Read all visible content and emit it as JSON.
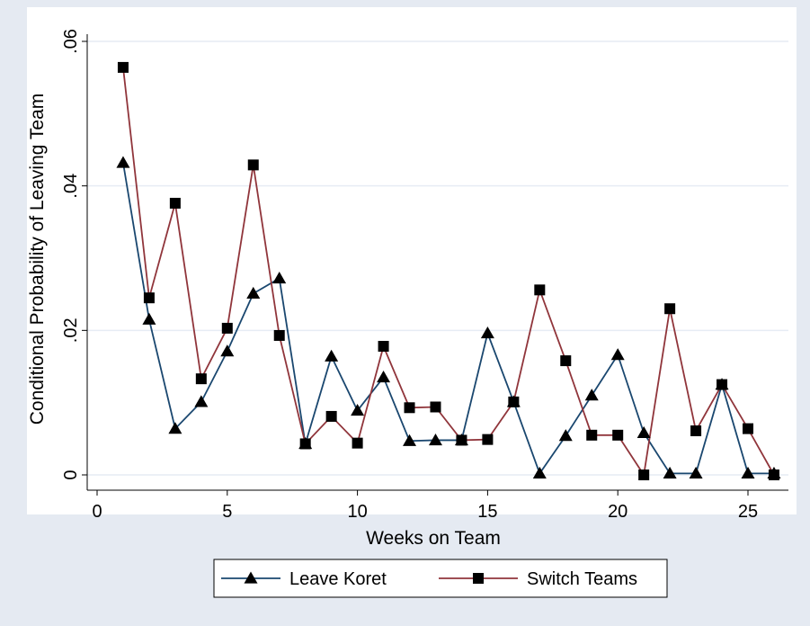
{
  "chart_data": {
    "type": "line",
    "xlabel": "Weeks on Team",
    "ylabel": "Conditional Probability of Leaving Team",
    "xlim": [
      0,
      26.5
    ],
    "ylim": [
      0,
      0.06
    ],
    "x_ticks": [
      0,
      5,
      10,
      15,
      20,
      25
    ],
    "x_tick_labels": [
      "0",
      "5",
      "10",
      "15",
      "20",
      "25"
    ],
    "y_ticks": [
      0,
      0.02,
      0.04,
      0.06
    ],
    "y_tick_labels": [
      "0",
      ".02",
      ".04",
      ".06"
    ],
    "grid": "horizontal",
    "legend_position": "bottom",
    "x": [
      1,
      2,
      3,
      4,
      5,
      6,
      7,
      8,
      9,
      10,
      11,
      12,
      13,
      14,
      15,
      16,
      17,
      18,
      19,
      20,
      21,
      22,
      23,
      24,
      25,
      26
    ],
    "series": [
      {
        "name": "Leave Koret",
        "color": "#1a476f",
        "marker": "triangle",
        "values": [
          0.0432,
          0.0215,
          0.0064,
          0.0101,
          0.0171,
          0.0251,
          0.0272,
          0.0043,
          0.0164,
          0.0089,
          0.0135,
          0.0047,
          0.0048,
          0.0048,
          0.0196,
          0.0101,
          0.0002,
          0.0054,
          0.011,
          0.0166,
          0.0058,
          0.0002,
          0.0002,
          0.0125,
          0.0002,
          0.0002
        ]
      },
      {
        "name": "Switch Teams",
        "color": "#90353b",
        "marker": "square",
        "values": [
          0.0564,
          0.0245,
          0.0376,
          0.0133,
          0.0203,
          0.0429,
          0.0193,
          0.0043,
          0.0081,
          0.0044,
          0.0178,
          0.0093,
          0.0094,
          0.0048,
          0.0049,
          0.0101,
          0.0256,
          0.0158,
          0.0055,
          0.0055,
          0.0,
          0.023,
          0.0061,
          0.0125,
          0.0064,
          0.0
        ]
      }
    ]
  }
}
